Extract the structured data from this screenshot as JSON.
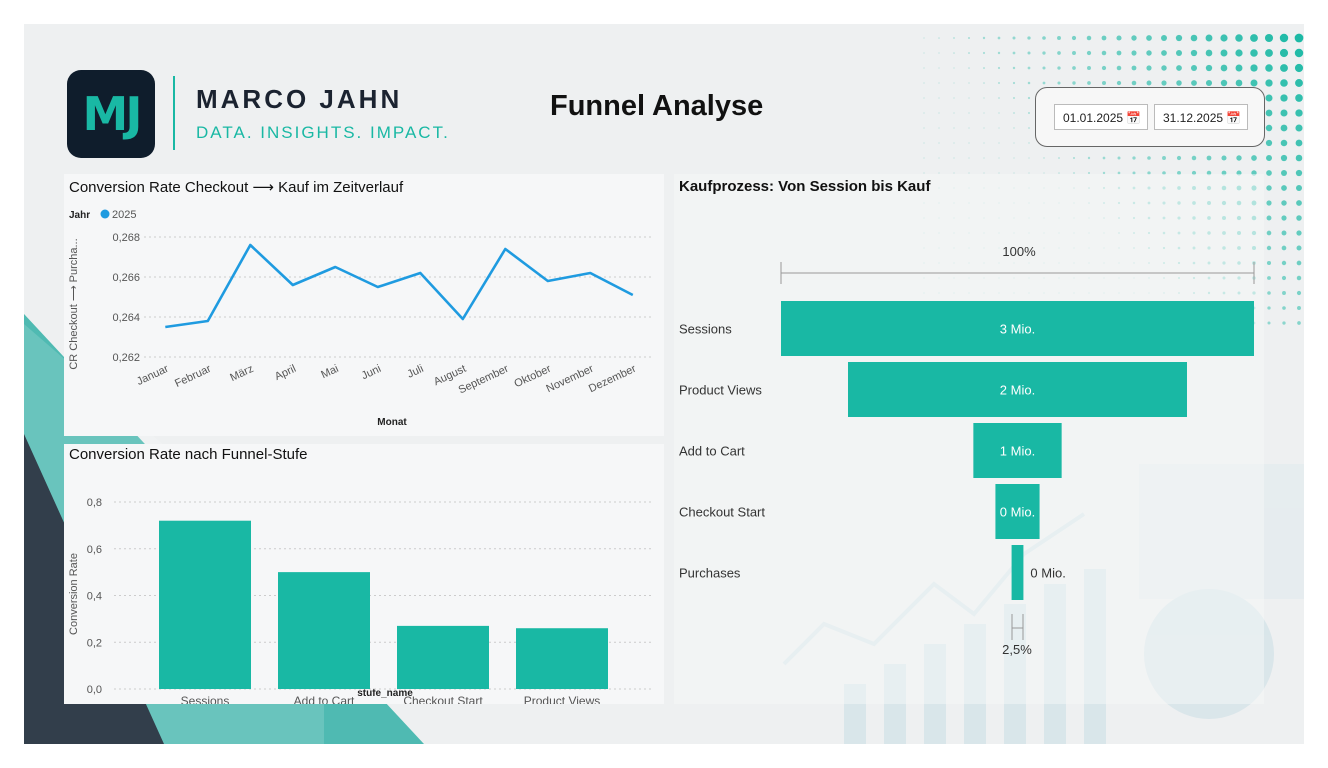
{
  "brand": {
    "logo_text": "MJ",
    "name": "MARCO JAHN",
    "tagline": "DATA. INSIGHTS. IMPACT."
  },
  "page_title": "Funnel Analyse",
  "date_range": {
    "start": "01.01.2025",
    "end": "31.12.2025",
    "calendar_icon": "calendar-icon"
  },
  "colors": {
    "accent": "#19b8a4",
    "line": "#1f9be0",
    "dark": "#0f1d2c",
    "background": "#eef0f1"
  },
  "chart_data": [
    {
      "type": "line",
      "title": "Conversion Rate Checkout ⟶ Kauf im Zeitverlauf",
      "legend": {
        "title": "Jahr",
        "entries": [
          "2025"
        ],
        "placement": "top-left"
      },
      "x": [
        "Januar",
        "Februar",
        "März",
        "April",
        "Mai",
        "Juni",
        "Juli",
        "August",
        "September",
        "Oktober",
        "November",
        "Dezember"
      ],
      "series": [
        {
          "name": "2025",
          "values": [
            0.2635,
            0.2638,
            0.2676,
            0.2656,
            0.2665,
            0.2655,
            0.2662,
            0.2639,
            0.2674,
            0.2658,
            0.2662,
            0.2651
          ]
        }
      ],
      "xlabel": "Monat",
      "ylabel": "CR Checkout ⟶ Purcha...",
      "ylim": [
        0.262,
        0.268
      ],
      "yticks": [
        "0,262",
        "0,264",
        "0,266",
        "0,268"
      ],
      "grid": true
    },
    {
      "type": "bar",
      "title": "Conversion Rate nach Funnel-Stufe",
      "categories": [
        "Sessions",
        "Add to Cart",
        "Checkout Start",
        "Product Views"
      ],
      "values": [
        0.72,
        0.5,
        0.27,
        0.26
      ],
      "xlabel": "stufe_name",
      "ylabel": "Conversion Rate",
      "ylim": [
        0,
        0.8
      ],
      "yticks": [
        "0,0",
        "0,2",
        "0,4",
        "0,6",
        "0,8"
      ],
      "grid": true
    },
    {
      "type": "bar",
      "title": "Kaufprozess: Von Session bis Kauf",
      "categories": [
        "Sessions",
        "Product Views",
        "Add to Cart",
        "Checkout Start",
        "Purchases"
      ],
      "values": [
        3.0,
        2.15,
        0.56,
        0.28,
        0.075
      ],
      "labels": [
        "3 Mio.",
        "2 Mio.",
        "1 Mio.",
        "0 Mio.",
        "0 Mio."
      ],
      "top_percent": "100%",
      "bottom_percent": "2,5%"
    }
  ]
}
